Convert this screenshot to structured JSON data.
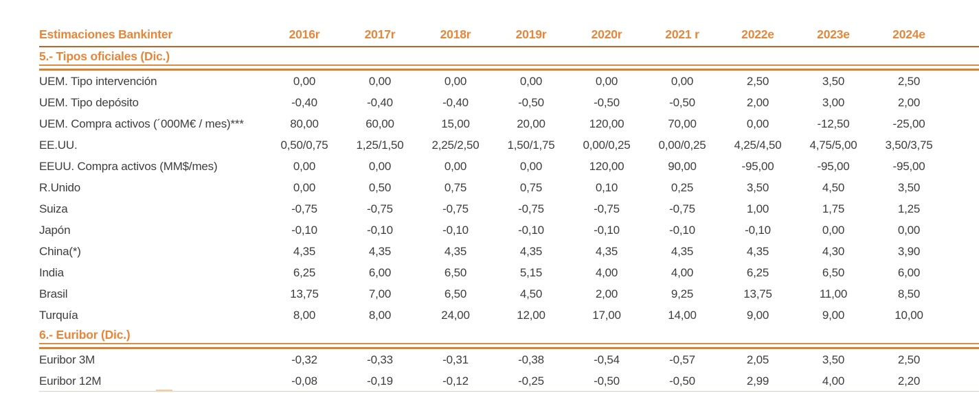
{
  "document": {
    "header": {
      "title": "Estimaciones Bankinter",
      "years": [
        "2016r",
        "2017r",
        "2018r",
        "2019r",
        "2020r",
        "2021 r",
        "2022e",
        "2023e",
        "2024e"
      ]
    },
    "sections": [
      {
        "title": "5.- Tipos oficiales (Dic.)",
        "rows": [
          {
            "label": "UEM. Tipo intervención",
            "values": [
              "0,00",
              "0,00",
              "0,00",
              "0,00",
              "0,00",
              "0,00",
              "2,50",
              "3,50",
              "2,50"
            ]
          },
          {
            "label": "UEM. Tipo depósito",
            "values": [
              "-0,40",
              "-0,40",
              "-0,40",
              "-0,50",
              "-0,50",
              "-0,50",
              "2,00",
              "3,00",
              "2,00"
            ]
          },
          {
            "label": "UEM. Compra activos (´000M€ / mes)***",
            "values": [
              "80,00",
              "60,00",
              "15,00",
              "20,00",
              "120,00",
              "70,00",
              "0,00",
              "-12,50",
              "-25,00"
            ]
          },
          {
            "label": "EE.UU.",
            "values": [
              "0,50/0,75",
              "1,25/1,50",
              "2,25/2,50",
              "1,50/1,75",
              "0,00/0,25",
              "0,00/0,25",
              "4,25/4,50",
              "4,75/5,00",
              "3,50/3,75"
            ]
          },
          {
            "label": "EEUU. Compra activos (MM$/mes)",
            "values": [
              "0,00",
              "0,00",
              "0,00",
              "0,00",
              "120,00",
              "90,00",
              "-95,00",
              "-95,00",
              "-95,00"
            ]
          },
          {
            "label": "R.Unido",
            "values": [
              "0,00",
              "0,50",
              "0,75",
              "0,75",
              "0,10",
              "0,25",
              "3,50",
              "4,50",
              "3,50"
            ]
          },
          {
            "label": "Suiza",
            "values": [
              "-0,75",
              "-0,75",
              "-0,75",
              "-0,75",
              "-0,75",
              "-0,75",
              "1,00",
              "1,75",
              "1,25"
            ]
          },
          {
            "label": "Japón",
            "values": [
              "-0,10",
              "-0,10",
              "-0,10",
              "-0,10",
              "-0,10",
              "-0,10",
              "-0,10",
              "0,00",
              "0,00"
            ]
          },
          {
            "label": "China(*)",
            "values": [
              "4,35",
              "4,35",
              "4,35",
              "4,35",
              "4,35",
              "4,35",
              "4,35",
              "4,30",
              "3,90"
            ]
          },
          {
            "label": "India",
            "values": [
              "6,25",
              "6,00",
              "6,50",
              "5,15",
              "4,00",
              "4,00",
              "6,25",
              "6,50",
              "6,00"
            ]
          },
          {
            "label": "Brasil",
            "values": [
              "13,75",
              "7,00",
              "6,50",
              "4,50",
              "2,00",
              "9,25",
              "13,75",
              "11,00",
              "8,50"
            ]
          },
          {
            "label": "Turquía",
            "values": [
              "8,00",
              "8,00",
              "24,00",
              "12,00",
              "17,00",
              "14,00",
              "9,00",
              "9,00",
              "10,00"
            ]
          }
        ]
      },
      {
        "title": "6.- Euribor (Dic.)",
        "rows": [
          {
            "label": "Euribor 3M",
            "values": [
              "-0,32",
              "-0,33",
              "-0,31",
              "-0,38",
              "-0,54",
              "-0,57",
              "2,05",
              "3,50",
              "2,50"
            ]
          },
          {
            "label": "Euribor 12M",
            "values": [
              "-0,08",
              "-0,19",
              "-0,12",
              "-0,25",
              "-0,50",
              "-0,50",
              "2,99",
              "4,00",
              "2,20"
            ]
          }
        ]
      }
    ]
  },
  "colors": {
    "accent_orange_text": "#E5873B",
    "header_rule": "#BC6425",
    "section_rule_thick": "#D9822F",
    "section_rule_thin": "#E08A3C",
    "body_text": "#3D3D3D"
  }
}
